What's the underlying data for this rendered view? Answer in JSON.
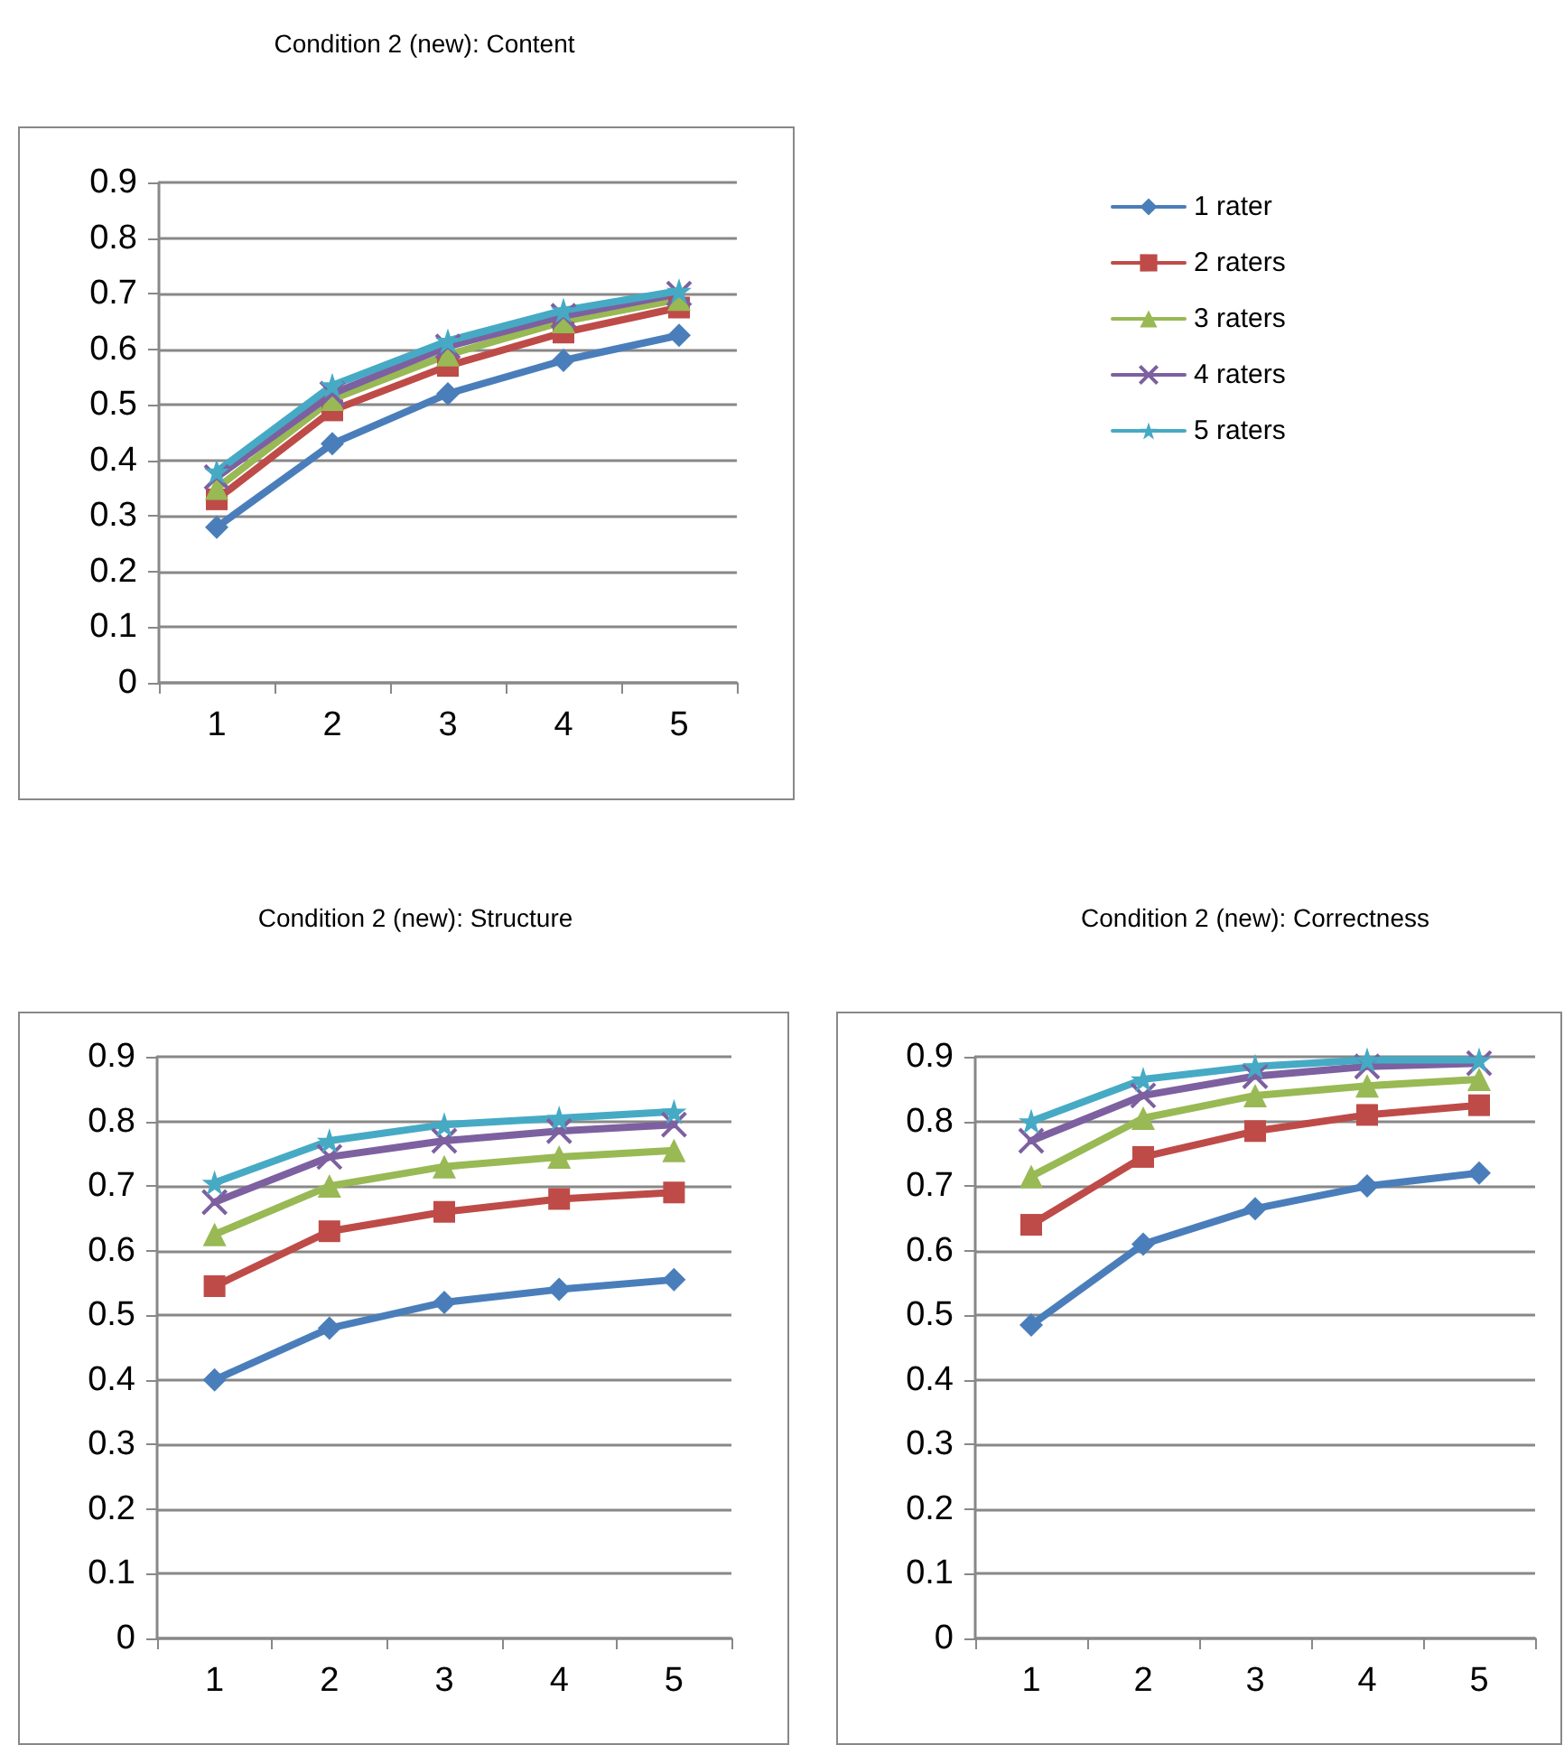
{
  "chart_data": [
    {
      "type": "line",
      "title": "Condition 2 (new): Content",
      "categories": [
        "1",
        "2",
        "3",
        "4",
        "5"
      ],
      "ylim": [
        0,
        0.9
      ],
      "yticks": [
        0,
        0.1,
        0.2,
        0.3,
        0.4,
        0.5,
        0.6,
        0.7,
        0.8,
        0.9
      ],
      "grid": "y",
      "legend": "right",
      "line_style": "solid",
      "series": [
        {
          "name": "1 rater",
          "color": "#4a7ebb",
          "marker": "diamond",
          "values": [
            0.28,
            0.43,
            0.52,
            0.58,
            0.625
          ]
        },
        {
          "name": "2 raters",
          "color": "#be4b48",
          "marker": "square",
          "values": [
            0.33,
            0.49,
            0.57,
            0.63,
            0.675
          ]
        },
        {
          "name": "3 raters",
          "color": "#98b954",
          "marker": "triangle",
          "values": [
            0.35,
            0.51,
            0.59,
            0.65,
            0.69
          ]
        },
        {
          "name": "4 raters",
          "color": "#7d60a0",
          "marker": "cross",
          "values": [
            0.37,
            0.52,
            0.605,
            0.66,
            0.7
          ]
        },
        {
          "name": "5 raters",
          "color": "#46aac5",
          "marker": "star",
          "values": [
            0.38,
            0.535,
            0.615,
            0.67,
            0.705
          ]
        }
      ]
    },
    {
      "type": "line",
      "title": "Condition 2 (new): Structure",
      "categories": [
        "1",
        "2",
        "3",
        "4",
        "5"
      ],
      "ylim": [
        0,
        0.9
      ],
      "yticks": [
        0,
        0.1,
        0.2,
        0.3,
        0.4,
        0.5,
        0.6,
        0.7,
        0.8,
        0.9
      ],
      "grid": "y",
      "legend": false,
      "line_style": "solid",
      "series": [
        {
          "color": "#4a7ebb",
          "marker": "diamond",
          "values": [
            0.4,
            0.48,
            0.52,
            0.54,
            0.555
          ]
        },
        {
          "color": "#be4b48",
          "marker": "square",
          "values": [
            0.545,
            0.63,
            0.66,
            0.68,
            0.69
          ]
        },
        {
          "color": "#98b954",
          "marker": "triangle",
          "values": [
            0.625,
            0.7,
            0.73,
            0.745,
            0.755
          ]
        },
        {
          "color": "#7d60a0",
          "marker": "cross",
          "values": [
            0.675,
            0.745,
            0.77,
            0.785,
            0.795
          ]
        },
        {
          "color": "#46aac5",
          "marker": "star",
          "values": [
            0.705,
            0.77,
            0.795,
            0.805,
            0.815
          ]
        }
      ]
    },
    {
      "type": "line",
      "title": "Condition 2 (new): Correctness",
      "categories": [
        "1",
        "2",
        "3",
        "4",
        "5"
      ],
      "ylim": [
        0,
        0.9
      ],
      "yticks": [
        0,
        0.1,
        0.2,
        0.3,
        0.4,
        0.5,
        0.6,
        0.7,
        0.8,
        0.9
      ],
      "grid": "y",
      "legend": false,
      "line_style": "solid",
      "series": [
        {
          "color": "#4a7ebb",
          "marker": "diamond",
          "values": [
            0.485,
            0.61,
            0.665,
            0.7,
            0.72
          ]
        },
        {
          "color": "#be4b48",
          "marker": "square",
          "values": [
            0.64,
            0.745,
            0.785,
            0.81,
            0.825
          ]
        },
        {
          "color": "#98b954",
          "marker": "triangle",
          "values": [
            0.715,
            0.805,
            0.84,
            0.855,
            0.865
          ]
        },
        {
          "color": "#7d60a0",
          "marker": "cross",
          "values": [
            0.77,
            0.84,
            0.87,
            0.885,
            0.89
          ]
        },
        {
          "color": "#46aac5",
          "marker": "star",
          "values": [
            0.8,
            0.865,
            0.885,
            0.895,
            0.895
          ]
        }
      ]
    }
  ]
}
